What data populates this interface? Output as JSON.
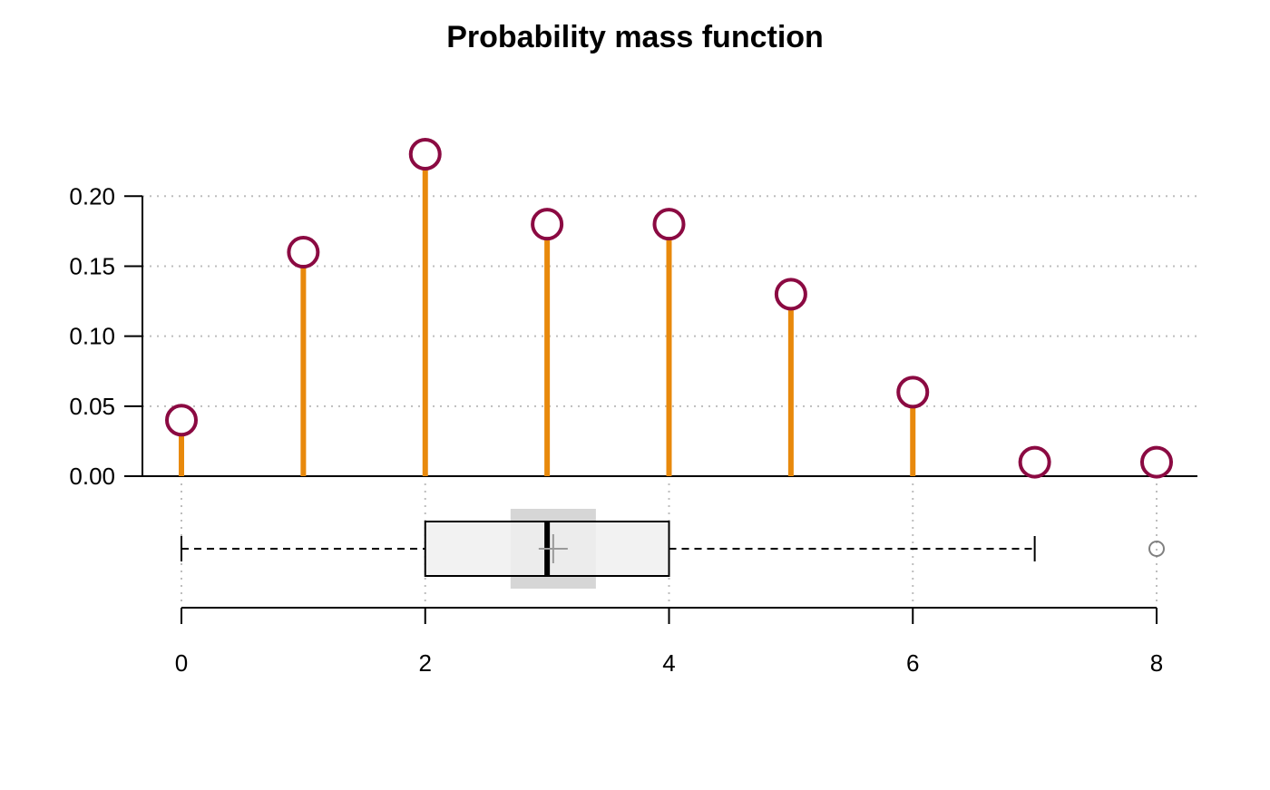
{
  "chart_data": {
    "type": "bar",
    "title": "Probability mass function",
    "xlabel": "",
    "ylabel": "",
    "x": [
      0,
      1,
      2,
      3,
      4,
      5,
      6,
      7,
      8
    ],
    "values": [
      0.04,
      0.16,
      0.23,
      0.18,
      0.18,
      0.13,
      0.06,
      0.01,
      0.01
    ],
    "ylim": [
      0,
      0.23
    ],
    "xlim": [
      0,
      8
    ],
    "y_ticks": [
      0,
      0.05,
      0.1,
      0.15,
      0.2
    ],
    "y_tick_labels": [
      "0.00",
      "0.05",
      "0.10",
      "0.15",
      "0.20"
    ],
    "x_ticks": [
      0,
      2,
      4,
      6,
      8
    ],
    "x_tick_labels": [
      "0",
      "2",
      "4",
      "6",
      "8"
    ],
    "grid": true,
    "boxplot": {
      "whisker_low": 0,
      "q1": 2,
      "median": 3,
      "mean": 3.05,
      "q3": 4,
      "whisker_high": 7,
      "notch_low": 2.7,
      "notch_high": 3.4,
      "outliers": [
        8
      ]
    },
    "colors": {
      "stem": "#e8890c",
      "point_stroke": "#8b0a42",
      "point_fill": "#ffffff",
      "grid": "#bdbdbd",
      "box_fill": "#f0f0f0",
      "notch_fill": "#d6d6d6",
      "mean_marker": "#9a9a9a",
      "outlier": "#808080"
    }
  }
}
